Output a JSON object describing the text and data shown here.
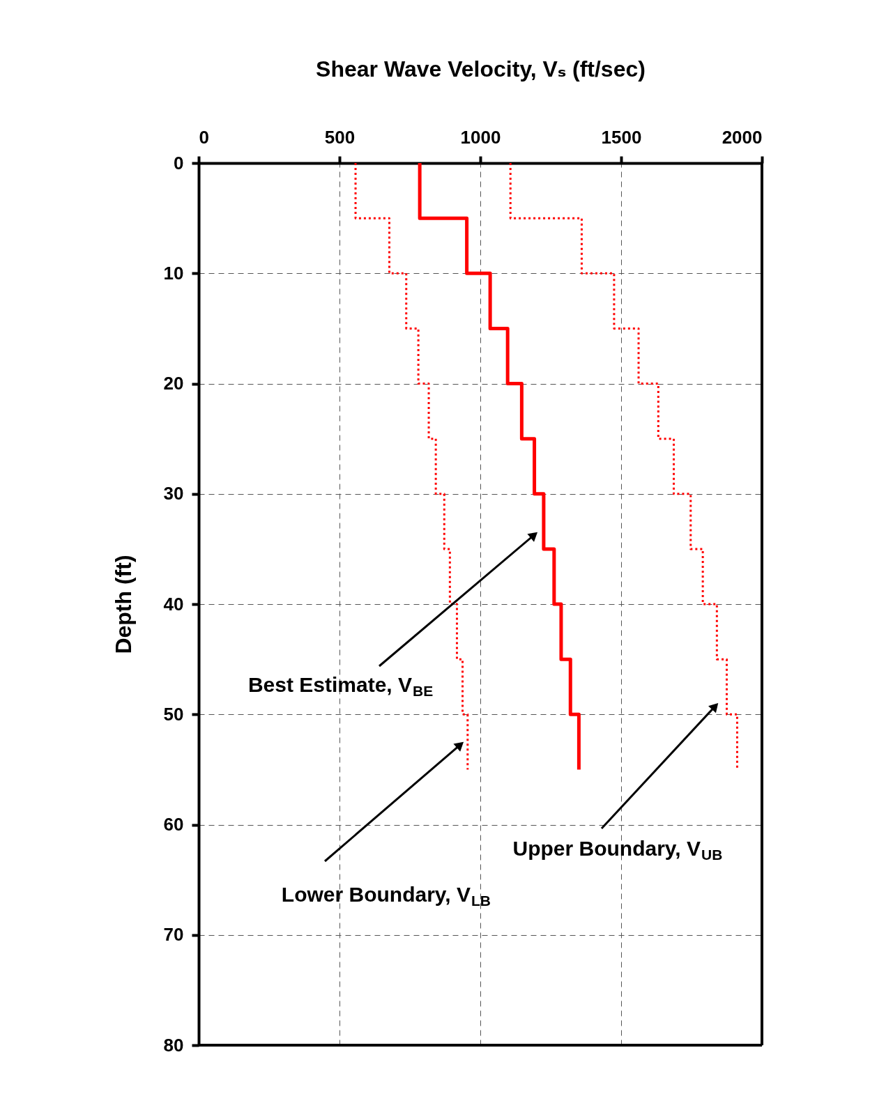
{
  "chart_data": {
    "type": "line",
    "xlabel": "Shear Wave Velocity, Vₛ (ft/sec)",
    "ylabel": "Depth (ft)",
    "xlim": [
      0,
      2000
    ],
    "xticks": [
      0,
      500,
      {
        "value": 1000,
        "label": "1000"
      },
      {
        "value": 1500,
        "label": "1500"
      },
      {
        "value": 2000,
        "label": "2000"
      }
    ],
    "ylim": [
      80,
      0
    ],
    "yticks": [
      0,
      10,
      20,
      30,
      40,
      50,
      60,
      70,
      80
    ],
    "grid": true,
    "series": [
      {
        "color": "#ff0000",
        "line_style": "solid",
        "x": [
          785,
          785,
          952,
          952,
          1035,
          1035,
          1097,
          1097,
          1147,
          1147,
          1192,
          1192,
          1225,
          1225,
          1262,
          1262,
          1287,
          1287,
          1320,
          1320,
          1350,
          1350
        ],
        "values": [
          0,
          5,
          5,
          10,
          10,
          15,
          15,
          20,
          20,
          25,
          25,
          30,
          30,
          35,
          35,
          40,
          40,
          45,
          45,
          50,
          50,
          55
        ]
      },
      {
        "color": "#ff0000",
        "line_style": "dotted",
        "x": [
          557,
          557,
          677,
          677,
          737,
          737,
          780,
          780,
          817,
          817,
          842,
          842,
          872,
          872,
          892,
          892,
          917,
          917,
          937,
          937,
          955,
          955
        ],
        "values": [
          0,
          5,
          5,
          10,
          10,
          15,
          15,
          20,
          20,
          25,
          25,
          30,
          30,
          35,
          35,
          40,
          40,
          45,
          45,
          50,
          50,
          55
        ]
      },
      {
        "color": "#ff0000",
        "line_style": "dotted",
        "x": [
          1107,
          1107,
          1360,
          1360,
          1475,
          1475,
          1562,
          1562,
          1632,
          1632,
          1687,
          1687,
          1747,
          1747,
          1790,
          1790,
          1840,
          1840,
          1875,
          1875,
          1912,
          1912
        ],
        "values": [
          0,
          5,
          5,
          10,
          10,
          15,
          15,
          20,
          20,
          25,
          25,
          30,
          30,
          35,
          35,
          40,
          40,
          45,
          45,
          50,
          50,
          55
        ]
      }
    ],
    "annotations": [
      "Best Estimate, V$_{BE}$",
      "Lower Boundary, V$_{LB}$",
      "Upper Boundary, V$_{UB}$"
    ]
  }
}
